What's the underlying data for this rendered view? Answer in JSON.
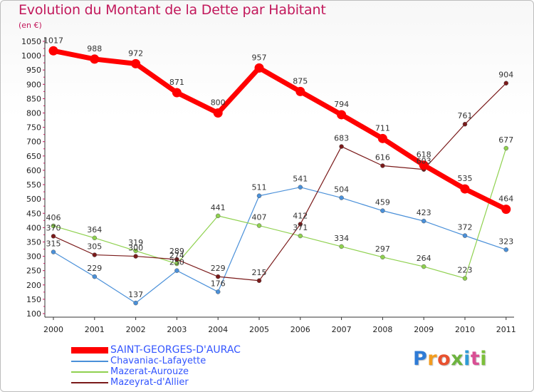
{
  "header": {
    "title": "Evolution du Montant de la Dette par Habitant",
    "unit": "(en €)"
  },
  "logo": {
    "text": "Proxiti"
  },
  "colors": {
    "saint_georges": "#ff0000",
    "chavaniac": "#4a90d9",
    "mazerat": "#8fd14f",
    "mazeyrat": "#7a1a1a",
    "legend_text": "#3355ff",
    "axis": "#333333",
    "grid_tick": "#c2185b"
  },
  "chart_data": {
    "type": "line",
    "title": "Evolution du Montant de la Dette par Habitant",
    "subtitle": "(en €)",
    "xlabel": "",
    "ylabel": "",
    "x": [
      "2000",
      "2001",
      "2002",
      "2003",
      "2004",
      "2005",
      "2006",
      "2007",
      "2008",
      "2009",
      "2010",
      "2011"
    ],
    "ylim": [
      100,
      1050
    ],
    "yticks": [
      100,
      150,
      200,
      250,
      300,
      350,
      400,
      450,
      500,
      550,
      600,
      650,
      700,
      750,
      800,
      850,
      900,
      950,
      1000,
      1050
    ],
    "grid": false,
    "legend_position": "bottom-left",
    "series": [
      {
        "name": "SAINT-GEORGES-D'AURAC",
        "values": [
          1017,
          988,
          972,
          871,
          800,
          957,
          875,
          794,
          711,
          618,
          535,
          464
        ]
      },
      {
        "name": "Chavaniac-Lafayette",
        "values": [
          315,
          229,
          137,
          250,
          176,
          511,
          541,
          504,
          459,
          423,
          372,
          323
        ]
      },
      {
        "name": "Mazerat-Aurouze",
        "values": [
          406,
          364,
          319,
          274,
          441,
          407,
          371,
          334,
          297,
          264,
          223,
          677
        ]
      },
      {
        "name": "Mazeyrat-d'Allier",
        "values": [
          370,
          305,
          300,
          289,
          229,
          215,
          412,
          683,
          616,
          603,
          761,
          904
        ]
      }
    ]
  }
}
